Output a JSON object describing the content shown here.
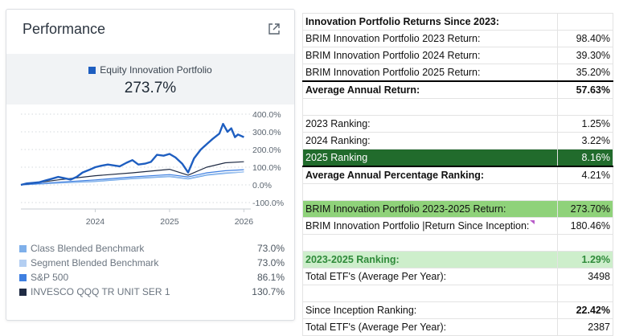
{
  "card": {
    "title": "Performance",
    "expand_icon": "external-link-icon",
    "primary_series_name": "Equity Innovation Portfolio",
    "primary_value": "273.7%"
  },
  "chart_data": {
    "type": "line",
    "title": "",
    "x_ticks": [
      "2024",
      "2025",
      "2026"
    ],
    "y_ticks": [
      "400.0%",
      "300.0%",
      "200.0%",
      "100.0%",
      "0.0%",
      "-100.0%"
    ],
    "ylim": [
      -100,
      400
    ],
    "x_range": [
      2023.0,
      2026.05
    ],
    "series": [
      {
        "name": "Equity Innovation Portfolio",
        "color": "#1e5ec0",
        "x": [
          2023.0,
          2023.08,
          2023.17,
          2023.25,
          2023.33,
          2023.42,
          2023.5,
          2023.58,
          2023.67,
          2023.75,
          2023.83,
          2023.92,
          2024.0,
          2024.08,
          2024.17,
          2024.25,
          2024.33,
          2024.42,
          2024.5,
          2024.58,
          2024.67,
          2024.75,
          2024.83,
          2024.92,
          2025.0,
          2025.08,
          2025.17,
          2025.25,
          2025.33,
          2025.42,
          2025.5,
          2025.58,
          2025.67,
          2025.72,
          2025.78,
          2025.83,
          2025.88,
          2025.92,
          2026.0
        ],
        "values": [
          0,
          8,
          12,
          15,
          25,
          35,
          45,
          38,
          30,
          45,
          70,
          85,
          100,
          108,
          115,
          110,
          105,
          125,
          140,
          115,
          120,
          130,
          170,
          165,
          175,
          155,
          120,
          70,
          150,
          200,
          230,
          260,
          290,
          345,
          300,
          320,
          270,
          285,
          270
        ]
      },
      {
        "name": "INVESCO QQQ TR UNIT SER 1",
        "color": "#1f2b44",
        "x": [
          2023.0,
          2023.5,
          2024.0,
          2024.5,
          2025.0,
          2025.25,
          2025.5,
          2025.75,
          2026.0
        ],
        "values": [
          0,
          28,
          52,
          68,
          88,
          55,
          100,
          125,
          131
        ]
      },
      {
        "name": "S&P 500",
        "color": "#3f7fe0",
        "x": [
          2023.0,
          2023.5,
          2024.0,
          2024.5,
          2025.0,
          2025.25,
          2025.5,
          2025.75,
          2026.0
        ],
        "values": [
          0,
          15,
          28,
          45,
          58,
          45,
          68,
          80,
          86
        ]
      },
      {
        "name": "Segment Blended Benchmark",
        "color": "#9fc3ef",
        "x": [
          2023.0,
          2023.5,
          2024.0,
          2024.5,
          2025.0,
          2025.25,
          2025.5,
          2025.75,
          2026.0
        ],
        "values": [
          0,
          12,
          22,
          38,
          50,
          36,
          58,
          68,
          73
        ]
      },
      {
        "name": "Class Blended Benchmark",
        "color": "#5b9be6",
        "x": [
          2023.0,
          2023.5,
          2024.0,
          2024.5,
          2025.0,
          2025.25,
          2025.5,
          2025.75,
          2026.0
        ],
        "values": [
          0,
          10,
          19,
          35,
          47,
          33,
          55,
          65,
          73
        ]
      }
    ]
  },
  "legend": [
    {
      "label": "Class Blended Benchmark",
      "value": "73.0%",
      "color": "#7fb0ea"
    },
    {
      "label": "Segment Blended Benchmark",
      "value": "73.0%",
      "color": "#b4cff2"
    },
    {
      "label": "S&P 500",
      "value": "86.1%",
      "color": "#3f7fe0"
    },
    {
      "label": "INVESCO QQQ TR UNIT SER 1",
      "value": "130.7%",
      "color": "#1f2b44"
    }
  ],
  "sheet": {
    "rows": [
      {
        "label": "Innovation Portfolio Returns Since 2023:",
        "value": ""
      },
      {
        "label": "BRIM Innovation Portfolio 2023 Return:",
        "value": "98.40%"
      },
      {
        "label": "BRIM Innovation Portfolio 2024 Return:",
        "value": "39.30%"
      },
      {
        "label": "BRIM Innovation Portfolio 2025 Return:",
        "value": "35.20%"
      },
      {
        "label": "Average Annual Return:",
        "value": "57.63%"
      },
      {
        "label": "",
        "value": ""
      },
      {
        "label": "2023 Ranking:",
        "value": "1.25%"
      },
      {
        "label": "2024 Ranking:",
        "value": "3.22%"
      },
      {
        "label": "2025 Ranking",
        "value": "8.16%"
      },
      {
        "label": "Average Annual Percentage Ranking:",
        "value": "4.21%"
      },
      {
        "label": "",
        "value": ""
      },
      {
        "label": "BRIM Innovation Portfolio 2023-2025 Return:",
        "value": "273.70%"
      },
      {
        "label": "BRIM Innovation Portfolio |Return Since Inception:",
        "value": "180.46%"
      },
      {
        "label": "",
        "value": ""
      },
      {
        "label": "2023-2025 Ranking:",
        "value": "1.29%"
      },
      {
        "label": "Total ETF's (Average Per Year):",
        "value": "3498"
      },
      {
        "label": "",
        "value": ""
      },
      {
        "label": "Since Inception Ranking:",
        "value": "22.42%"
      },
      {
        "label": "Total ETF's (Average Per Year):",
        "value": "2387"
      }
    ]
  }
}
